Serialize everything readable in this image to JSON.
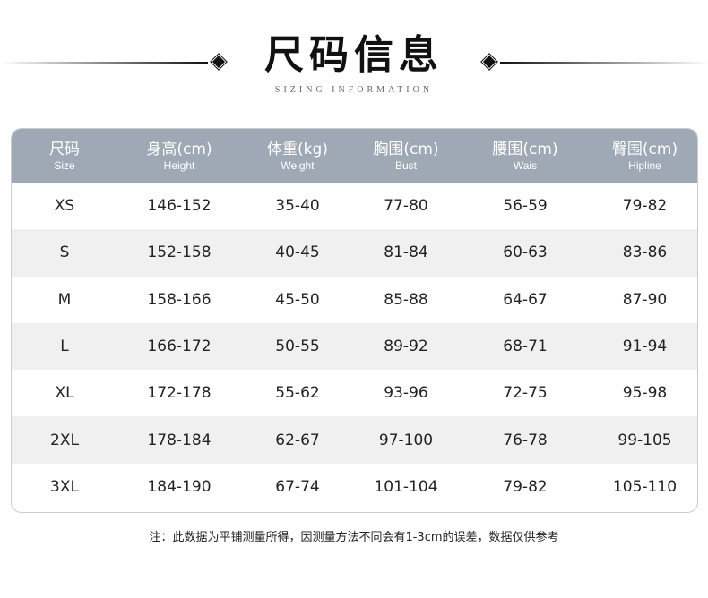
{
  "title": "尺码信息",
  "subtitle": "SIZING INFORMATION",
  "headers": [
    {
      "zh": "尺码",
      "en": "Size"
    },
    {
      "zh": "身高(cm)",
      "en": "Height"
    },
    {
      "zh": "体重(kg)",
      "en": "Weight"
    },
    {
      "zh": "胸围(cm)",
      "en": "Bust"
    },
    {
      "zh": "腰围(cm)",
      "en": "Wais"
    },
    {
      "zh": "臀围(cm)",
      "en": "Hipline"
    }
  ],
  "rows": [
    [
      "XS",
      "146-152",
      "35-40",
      "77-80",
      "56-59",
      "79-82"
    ],
    [
      "S",
      "152-158",
      "40-45",
      "81-84",
      "60-63",
      "83-86"
    ],
    [
      "M",
      "158-166",
      "45-50",
      "85-88",
      "64-67",
      "87-90"
    ],
    [
      "L",
      "166-172",
      "50-55",
      "89-92",
      "68-71",
      "91-94"
    ],
    [
      "XL",
      "172-178",
      "55-62",
      "93-96",
      "72-75",
      "95-98"
    ],
    [
      "2XL",
      "178-184",
      "62-67",
      "97-100",
      "76-78",
      "99-105"
    ],
    [
      "3XL",
      "184-190",
      "67-74",
      "101-104",
      "79-82",
      "105-110"
    ]
  ],
  "note": "注：此数据为平铺测量所得，因测量方法不同会有1-3cm的误差，数据仅供参考",
  "colors": {
    "header_bg": "#9fa8b5",
    "alt_row": "#f0f0f0"
  }
}
